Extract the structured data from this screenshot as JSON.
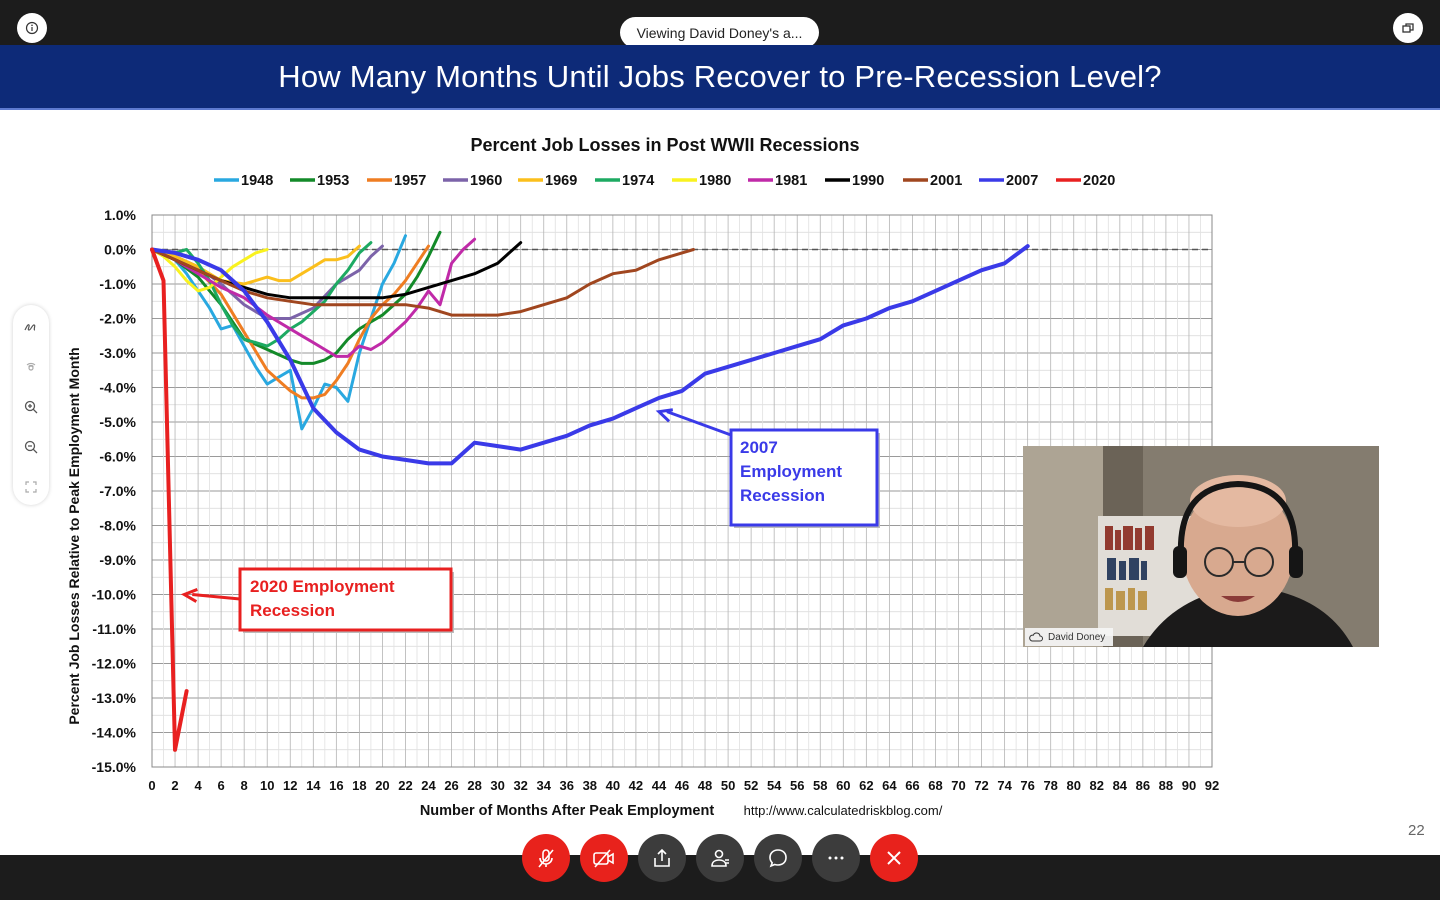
{
  "topbar": {
    "viewing_text": "Viewing David Doney's a..."
  },
  "slide": {
    "title": "How Many Months Until Jobs Recover to Pre-Recession Level?",
    "page_number": "22"
  },
  "chart_data": {
    "type": "line",
    "title": "Percent Job Losses in Post WWII Recessions",
    "xlabel": "Number of Months After Peak Employment",
    "ylabel": "Percent Job Losses Relative to Peak Employment Month",
    "source": "http://www.calculatedriskblog.com/",
    "xlim": [
      0,
      92
    ],
    "ylim": [
      -15,
      1
    ],
    "x_ticks": [
      0,
      2,
      4,
      6,
      8,
      10,
      12,
      14,
      16,
      18,
      20,
      22,
      24,
      26,
      28,
      30,
      32,
      34,
      36,
      38,
      40,
      42,
      44,
      46,
      48,
      50,
      52,
      54,
      56,
      58,
      60,
      62,
      64,
      66,
      68,
      70,
      72,
      74,
      76,
      78,
      80,
      82,
      84,
      86,
      88,
      90,
      92
    ],
    "y_tick_labels": [
      "1.0%",
      "0.0%",
      "-1.0%",
      "-2.0%",
      "-3.0%",
      "-4.0%",
      "-5.0%",
      "-6.0%",
      "-7.0%",
      "-8.0%",
      "-9.0%",
      "-10.0%",
      "-11.0%",
      "-12.0%",
      "-13.0%",
      "-14.0%",
      "-15.0%"
    ],
    "legend_position": "top",
    "grid": true,
    "series": [
      {
        "name": "1948",
        "color": "#29a8e0",
        "width": 3,
        "x": [
          0,
          1,
          2,
          3,
          4,
          5,
          6,
          7,
          8,
          9,
          10,
          11,
          12,
          13,
          14,
          15,
          16,
          17,
          18,
          19,
          20,
          21,
          22
        ],
        "y": [
          0,
          -0.1,
          -0.3,
          -0.7,
          -1.2,
          -1.7,
          -2.3,
          -2.2,
          -2.8,
          -3.4,
          -3.9,
          -3.7,
          -3.5,
          -5.2,
          -4.6,
          -3.9,
          -4.0,
          -4.4,
          -3.0,
          -2.0,
          -1.0,
          -0.4,
          0.4
        ]
      },
      {
        "name": "1953",
        "color": "#138a29",
        "width": 3,
        "x": [
          0,
          2,
          4,
          6,
          8,
          10,
          12,
          13,
          14,
          15,
          16,
          17,
          18,
          19,
          20,
          21,
          22,
          23,
          24,
          25
        ],
        "y": [
          0,
          -0.3,
          -0.8,
          -1.6,
          -2.6,
          -2.9,
          -3.2,
          -3.3,
          -3.3,
          -3.2,
          -3.0,
          -2.6,
          -2.3,
          -2.1,
          -1.9,
          -1.6,
          -1.3,
          -0.8,
          -0.2,
          0.5
        ]
      },
      {
        "name": "1957",
        "color": "#ef7d22",
        "width": 3,
        "x": [
          0,
          2,
          4,
          6,
          8,
          10,
          12,
          13,
          14,
          15,
          16,
          17,
          18,
          19,
          20,
          21,
          22,
          23,
          24
        ],
        "y": [
          0,
          -0.3,
          -0.6,
          -1.3,
          -2.4,
          -3.5,
          -4.1,
          -4.3,
          -4.3,
          -4.2,
          -3.8,
          -3.3,
          -2.6,
          -2.0,
          -1.6,
          -1.3,
          -0.9,
          -0.4,
          0.1
        ]
      },
      {
        "name": "1960",
        "color": "#7c63a9",
        "width": 3,
        "x": [
          0,
          2,
          4,
          6,
          8,
          10,
          12,
          14,
          16,
          17,
          18,
          19,
          20
        ],
        "y": [
          0,
          -0.2,
          -0.5,
          -1.0,
          -1.6,
          -2.0,
          -2.0,
          -1.7,
          -1.0,
          -0.8,
          -0.6,
          -0.2,
          0.1
        ]
      },
      {
        "name": "1969",
        "color": "#fbbf1c",
        "width": 3,
        "x": [
          0,
          2,
          4,
          6,
          8,
          9,
          10,
          11,
          12,
          13,
          14,
          15,
          16,
          17,
          18
        ],
        "y": [
          0,
          -0.2,
          -0.5,
          -0.9,
          -1.0,
          -0.9,
          -0.8,
          -0.9,
          -0.9,
          -0.7,
          -0.5,
          -0.3,
          -0.3,
          -0.2,
          0.1
        ]
      },
      {
        "name": "1974",
        "color": "#1daa62",
        "width": 3,
        "x": [
          0,
          2,
          3,
          4,
          5,
          6,
          7,
          8,
          9,
          10,
          11,
          12,
          13,
          14,
          15,
          16,
          17,
          18,
          19
        ],
        "y": [
          0,
          -0.1,
          0,
          -0.4,
          -0.9,
          -1.6,
          -2.2,
          -2.6,
          -2.7,
          -2.8,
          -2.6,
          -2.3,
          -2.1,
          -1.8,
          -1.5,
          -1.0,
          -0.6,
          -0.1,
          0.2
        ]
      },
      {
        "name": "1980",
        "color": "#f9f21f",
        "width": 3,
        "x": [
          0,
          1,
          2,
          3,
          4,
          5,
          6,
          7,
          8,
          9,
          10
        ],
        "y": [
          0,
          -0.2,
          -0.5,
          -0.9,
          -1.2,
          -1.1,
          -0.8,
          -0.5,
          -0.3,
          -0.1,
          0
        ]
      },
      {
        "name": "1981",
        "color": "#c02aa8",
        "width": 3,
        "x": [
          0,
          2,
          4,
          6,
          8,
          10,
          12,
          13,
          14,
          15,
          16,
          17,
          18,
          19,
          20,
          21,
          22,
          23,
          24,
          25,
          26,
          27,
          28
        ],
        "y": [
          0,
          -0.3,
          -0.7,
          -1.1,
          -1.4,
          -1.9,
          -2.3,
          -2.5,
          -2.7,
          -2.9,
          -3.1,
          -3.1,
          -2.8,
          -2.9,
          -2.7,
          -2.4,
          -2.1,
          -1.7,
          -1.2,
          -1.6,
          -0.4,
          0,
          0.3
        ]
      },
      {
        "name": "1990",
        "color": "#000000",
        "width": 3,
        "x": [
          0,
          2,
          4,
          6,
          8,
          10,
          12,
          14,
          16,
          18,
          20,
          22,
          24,
          26,
          28,
          30,
          31,
          32
        ],
        "y": [
          0,
          -0.3,
          -0.6,
          -0.9,
          -1.1,
          -1.3,
          -1.4,
          -1.4,
          -1.4,
          -1.4,
          -1.4,
          -1.3,
          -1.1,
          -0.9,
          -0.7,
          -0.4,
          -0.1,
          0.2
        ]
      },
      {
        "name": "2001",
        "color": "#a0461f",
        "width": 3,
        "x": [
          0,
          2,
          4,
          6,
          8,
          10,
          12,
          14,
          16,
          18,
          20,
          22,
          24,
          26,
          28,
          30,
          32,
          34,
          36,
          38,
          40,
          42,
          44,
          46,
          47
        ],
        "y": [
          0,
          -0.3,
          -0.6,
          -0.9,
          -1.2,
          -1.4,
          -1.5,
          -1.6,
          -1.6,
          -1.6,
          -1.6,
          -1.6,
          -1.7,
          -1.9,
          -1.9,
          -1.9,
          -1.8,
          -1.6,
          -1.4,
          -1.0,
          -0.7,
          -0.6,
          -0.3,
          -0.1,
          0
        ]
      },
      {
        "name": "2007",
        "color": "#3a3ae8",
        "width": 4,
        "x": [
          0,
          2,
          4,
          6,
          8,
          10,
          12,
          14,
          16,
          18,
          20,
          22,
          24,
          26,
          28,
          30,
          32,
          34,
          36,
          38,
          40,
          42,
          44,
          46,
          48,
          50,
          52,
          54,
          56,
          58,
          60,
          62,
          64,
          66,
          68,
          70,
          72,
          74,
          76
        ],
        "y": [
          0,
          -0.1,
          -0.3,
          -0.6,
          -1.2,
          -2.1,
          -3.2,
          -4.6,
          -5.3,
          -5.8,
          -6.0,
          -6.1,
          -6.2,
          -6.2,
          -5.6,
          -5.7,
          -5.8,
          -5.6,
          -5.4,
          -5.1,
          -4.9,
          -4.6,
          -4.3,
          -4.1,
          -3.6,
          -3.4,
          -3.2,
          -3.0,
          -2.8,
          -2.6,
          -2.2,
          -2.0,
          -1.7,
          -1.5,
          -1.2,
          -0.9,
          -0.6,
          -0.4,
          0.1
        ]
      },
      {
        "name": "2020",
        "color": "#e82020",
        "width": 4,
        "x": [
          0,
          1,
          2,
          3
        ],
        "y": [
          0,
          -0.9,
          -14.5,
          -12.8
        ]
      }
    ],
    "annotations": [
      {
        "text": [
          "2007",
          "Employment",
          "Recession"
        ],
        "color": "#3a3ae8",
        "arrow_to": [
          44,
          -4.7
        ]
      },
      {
        "text": [
          "2020 Employment",
          "Recession"
        ],
        "color": "#e82020",
        "arrow_to": [
          2.8,
          -10.0
        ]
      }
    ]
  },
  "video": {
    "participant_name": "David Doney"
  },
  "controls": [
    {
      "name": "mute-button",
      "icon": "mic-off-icon"
    },
    {
      "name": "video-toggle-button",
      "icon": "video-off-icon"
    },
    {
      "name": "share-button",
      "icon": "share-icon"
    },
    {
      "name": "participants-button",
      "icon": "participants-icon"
    },
    {
      "name": "chat-button",
      "icon": "chat-icon"
    },
    {
      "name": "more-button",
      "icon": "more-icon"
    },
    {
      "name": "leave-button",
      "icon": "close-icon"
    }
  ]
}
